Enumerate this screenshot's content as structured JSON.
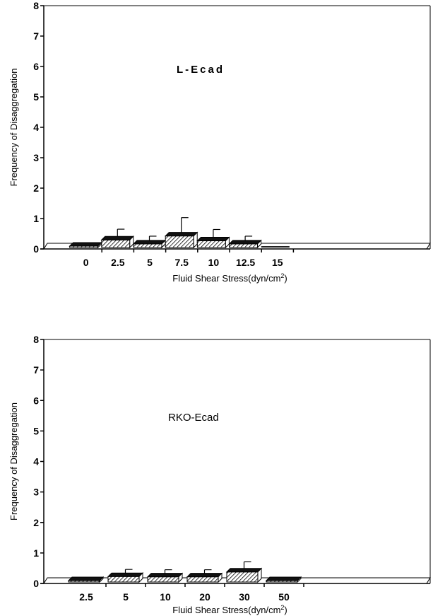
{
  "chart_data": [
    {
      "type": "bar",
      "annotation": "L-Ecad",
      "ylabel": "Frequency of Disaggregation",
      "xlabel_prefix": "Fluid Shear Stress(dyn/cm",
      "xlabel_sup": "2",
      "xlabel_suffix": ")",
      "ylim": [
        0,
        8
      ],
      "yticks": [
        "0",
        "1",
        "2",
        "3",
        "4",
        "5",
        "6",
        "7",
        "8"
      ],
      "categories": [
        "0",
        "2.5",
        "5",
        "7.5",
        "10",
        "12.5",
        "15"
      ],
      "values": [
        0.02,
        0.25,
        0.12,
        0.38,
        0.22,
        0.12,
        0
      ],
      "errors": [
        0,
        0.4,
        0.3,
        0.65,
        0.42,
        0.3,
        0
      ],
      "grid": false,
      "style": "3d-hatched"
    },
    {
      "type": "bar",
      "annotation": "RKO-Ecad",
      "ylabel": "Frequency of Disaggregation",
      "xlabel_prefix": "Fluid Shear Stress(dyn/cm",
      "xlabel_sup": "2",
      "xlabel_suffix": ")",
      "ylim": [
        0,
        8
      ],
      "yticks": [
        "0",
        "1",
        "2",
        "3",
        "4",
        "5",
        "6",
        "7",
        "8"
      ],
      "categories": [
        "2.5",
        "5",
        "10",
        "20",
        "30",
        "50"
      ],
      "values": [
        0.02,
        0.18,
        0.17,
        0.17,
        0.33,
        0.02
      ],
      "errors": [
        0,
        0.28,
        0.28,
        0.28,
        0.38,
        0
      ],
      "grid": false,
      "style": "3d-hatched"
    }
  ]
}
